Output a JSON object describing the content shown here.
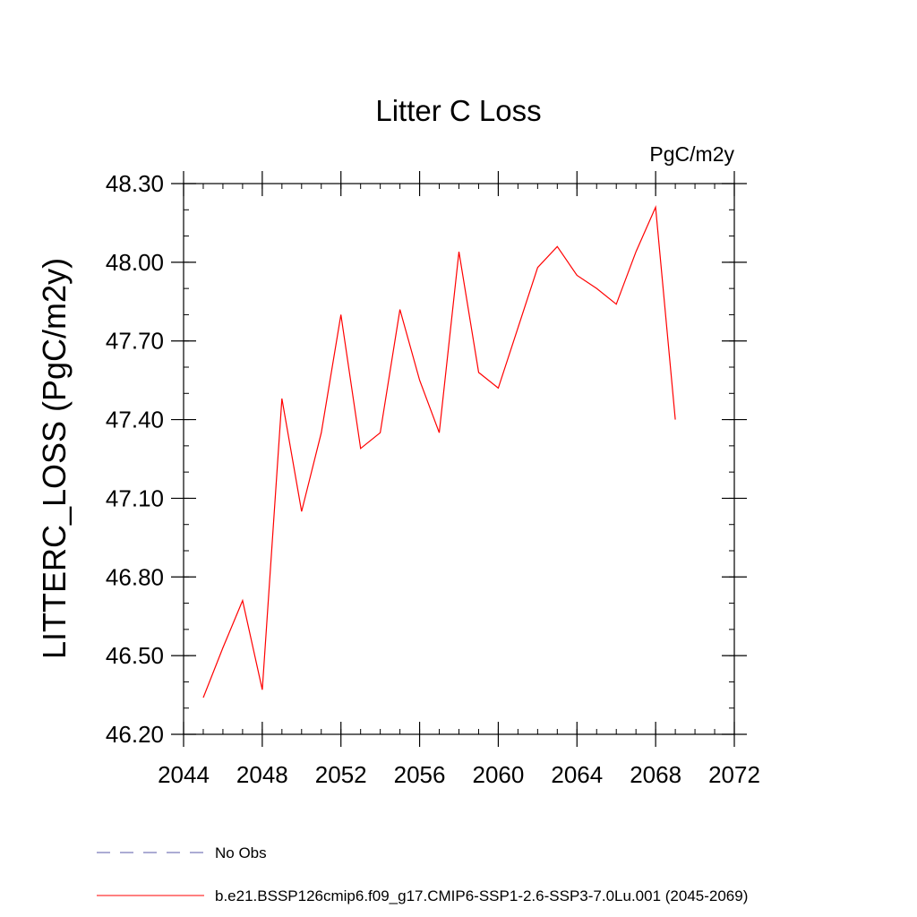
{
  "chart_data": {
    "type": "line",
    "title": "Litter C Loss",
    "units_label": "PgC/m2y",
    "ylabel": "LITTERC_LOSS  (PgC/m2y)",
    "xlabel": "",
    "xlim": [
      2044,
      2072
    ],
    "ylim": [
      46.2,
      48.3
    ],
    "x_ticks": [
      "2044",
      "2048",
      "2052",
      "2056",
      "2060",
      "2064",
      "2068",
      "2072"
    ],
    "y_ticks": [
      "46.20",
      "46.50",
      "46.80",
      "47.10",
      "47.40",
      "47.70",
      "48.00",
      "48.30"
    ],
    "x_tick_values": [
      2044,
      2048,
      2052,
      2056,
      2060,
      2064,
      2068,
      2072
    ],
    "y_tick_values": [
      46.2,
      46.5,
      46.8,
      47.1,
      47.4,
      47.7,
      48.0,
      48.3
    ],
    "x_minor_step": 1,
    "y_minor_step": 0.1,
    "grid": false,
    "series": [
      {
        "name": "b.e21.BSSP126cmip6.f09_g17.CMIP6-SSP1-2.6-SSP3-7.0Lu.001 (2045-2069)",
        "color": "#ff0000",
        "x": [
          2045,
          2046,
          2047,
          2048,
          2049,
          2050,
          2051,
          2052,
          2053,
          2054,
          2055,
          2056,
          2057,
          2058,
          2059,
          2060,
          2061,
          2062,
          2063,
          2064,
          2065,
          2066,
          2067,
          2068,
          2069
        ],
        "y": [
          46.34,
          46.53,
          46.71,
          46.37,
          47.48,
          47.05,
          47.35,
          47.8,
          47.29,
          47.35,
          47.82,
          47.55,
          47.35,
          48.04,
          47.58,
          47.52,
          47.75,
          47.98,
          48.06,
          47.95,
          47.9,
          47.84,
          48.04,
          48.21,
          47.4
        ]
      }
    ],
    "legend": {
      "placement": "bottom",
      "entries": [
        {
          "label": "No Obs",
          "color": "#5a5aaa",
          "style": "dashed"
        },
        {
          "label": "b.e21.BSSP126cmip6.f09_g17.CMIP6-SSP1-2.6-SSP3-7.0Lu.001 (2045-2069)",
          "color": "#ff0000",
          "style": "solid"
        }
      ]
    }
  }
}
